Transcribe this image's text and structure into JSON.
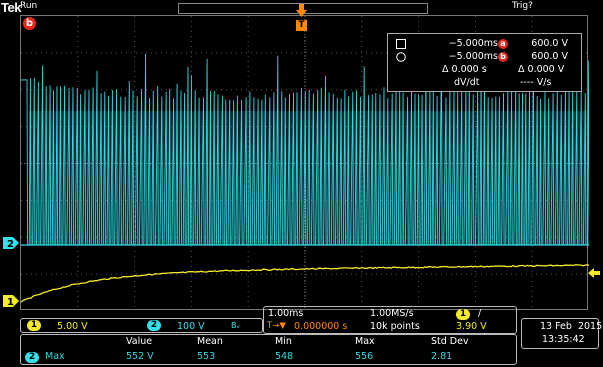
{
  "brand": "Tek",
  "acquisition_state": "Run",
  "trigger_status": "Trig?",
  "colors": {
    "ch1": "#f3ea2a",
    "ch2": "#34e0ea",
    "trigger": "#ff8a00",
    "cursor_badge": "#e8281e"
  },
  "markers": {
    "cursor_b": "b",
    "trigger": "T",
    "ch2": "2",
    "ch1": "1"
  },
  "cursors": {
    "row_a": {
      "time": "−5.000ms",
      "badge": "a",
      "value": "600.0 V"
    },
    "row_b": {
      "time": "−5.000ms",
      "badge": "b",
      "value": "600.0 V"
    },
    "delta_time": "Δ 0.000 s",
    "delta_value": "Δ 0.000 V",
    "dvdt_label": "dV/dt",
    "dvdt_value": "---- V/s"
  },
  "channels": {
    "ch1": {
      "badge": "1",
      "scale": "5.00 V"
    },
    "ch2": {
      "badge": "2",
      "scale": "100 V",
      "bw_symbol": "Bᵥ"
    }
  },
  "timebase": {
    "horizontal_scale": "1.00ms",
    "sample_rate": "1.00MS/s",
    "trigger_source_badge": "1",
    "trigger_slope": "/",
    "trigger_position_icon": "T→▼",
    "trigger_position": "0.000000 s",
    "record_length": "10k points",
    "trigger_level": "3.90 V"
  },
  "measurement": {
    "headers": [
      "Value",
      "Mean",
      "Min",
      "Max",
      "Std Dev"
    ],
    "source_badge": "2",
    "type": "Max",
    "values": [
      "552 V",
      "553",
      "548",
      "556",
      "2.81"
    ]
  },
  "datetime": {
    "date": "13 Feb  2015",
    "time": "13:35:42"
  }
}
